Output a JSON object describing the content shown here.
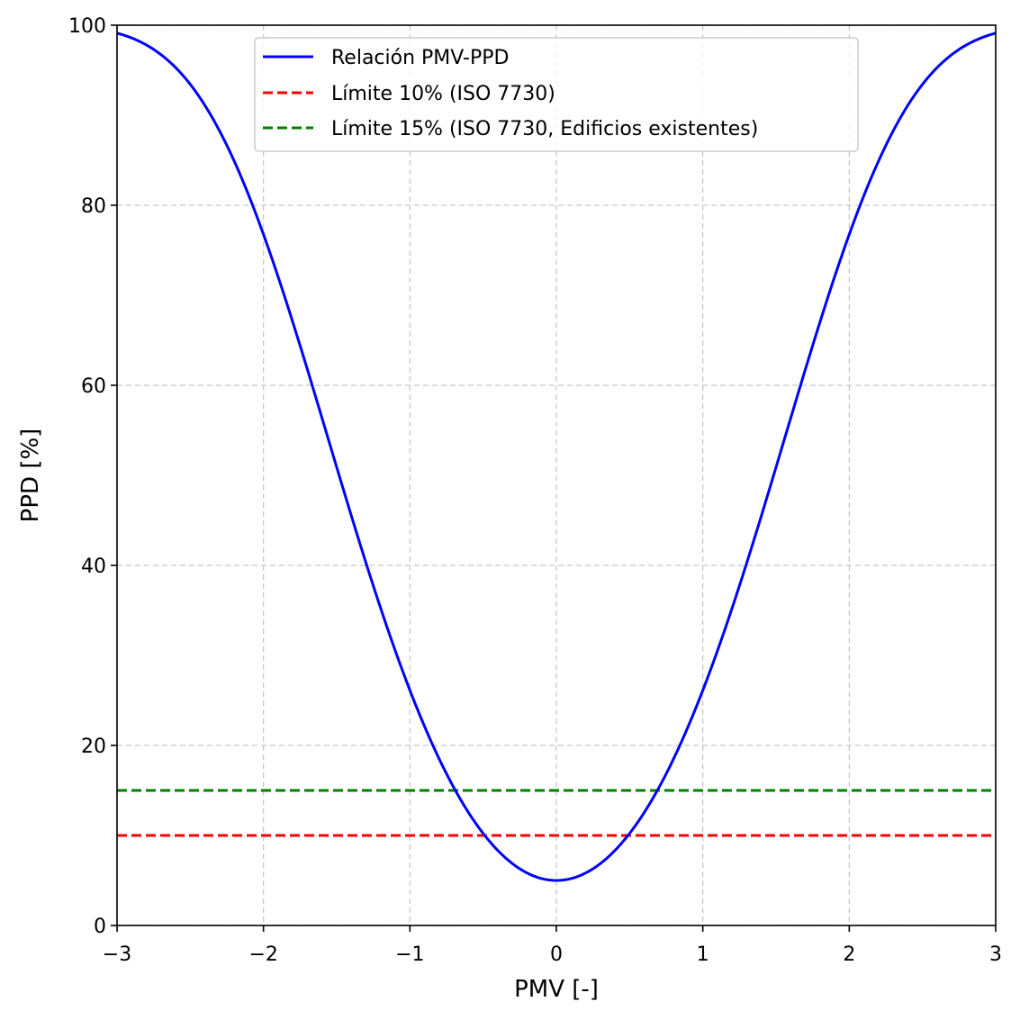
{
  "chart_data": {
    "type": "line",
    "title": "",
    "xlabel": "PMV [-]",
    "ylabel": "PPD [%]",
    "xlim": [
      -3,
      3
    ],
    "ylim": [
      0,
      100
    ],
    "xticks": [
      -3,
      -2,
      -1,
      0,
      1,
      2,
      3
    ],
    "xtick_labels": [
      "−3",
      "−2",
      "−1",
      "0",
      "1",
      "2",
      "3"
    ],
    "yticks": [
      0,
      20,
      40,
      60,
      80,
      100
    ],
    "ytick_labels": [
      "0",
      "20",
      "40",
      "60",
      "80",
      "100"
    ],
    "grid": true,
    "legend_position": "top-center",
    "series": [
      {
        "name": "Relación PMV-PPD",
        "color": "#0000ff",
        "style": "solid",
        "formula": "100 - 95*exp(-0.03353*PMV^4 - 0.2179*PMV^2)",
        "x": [
          -3,
          -2.5,
          -2,
          -1.5,
          -1,
          -0.5,
          0,
          0.5,
          1,
          1.5,
          2,
          2.5,
          3
        ],
        "y": [
          99.1,
          93.7,
          76.8,
          51.0,
          26.1,
          10.2,
          5.0,
          10.2,
          26.1,
          51.0,
          76.8,
          93.7,
          99.1
        ]
      },
      {
        "name": "Límite 10% (ISO 7730)",
        "color": "#ff0000",
        "style": "dashed",
        "x": [
          -3,
          3
        ],
        "y": [
          10,
          10
        ]
      },
      {
        "name": "Límite 15% (ISO 7730, Edificios existentes)",
        "color": "#008000",
        "style": "dashed",
        "x": [
          -3,
          3
        ],
        "y": [
          15,
          15
        ]
      }
    ]
  }
}
